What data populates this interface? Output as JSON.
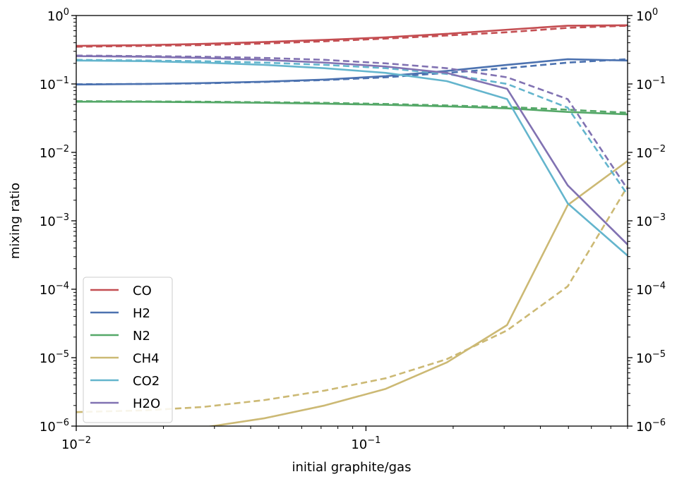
{
  "chart_data": {
    "type": "line",
    "xlabel": "initial graphite/gas",
    "ylabel": "mixing ratio",
    "xscale": "log",
    "yscale": "log",
    "xlim": [
      0.01,
      0.8
    ],
    "ylim": [
      1e-06,
      1
    ],
    "x_ticks": [
      {
        "value": 0.01,
        "base": "10",
        "exp": "−2"
      },
      {
        "value": 0.1,
        "base": "10",
        "exp": "−1"
      }
    ],
    "y_ticks": [
      {
        "value": 1e-06,
        "base": "10",
        "exp": "−6"
      },
      {
        "value": 1e-05,
        "base": "10",
        "exp": "−5"
      },
      {
        "value": 0.0001,
        "base": "10",
        "exp": "−4"
      },
      {
        "value": 0.001,
        "base": "10",
        "exp": "−3"
      },
      {
        "value": 0.01,
        "base": "10",
        "exp": "−2"
      },
      {
        "value": 0.1,
        "base": "10",
        "exp": "−1"
      },
      {
        "value": 1,
        "base": "10",
        "exp": "0"
      }
    ],
    "mirror_right_axis": true,
    "legend_position": "lower-left",
    "x": [
      0.01,
      0.0173,
      0.0273,
      0.0446,
      0.072,
      0.117,
      0.19,
      0.307,
      0.497,
      0.8
    ],
    "series": [
      {
        "name": "CO",
        "color": "#c44e52",
        "solid": [
          0.36,
          0.37,
          0.385,
          0.41,
          0.44,
          0.48,
          0.54,
          0.62,
          0.71,
          0.72
        ],
        "dashed": [
          0.35,
          0.36,
          0.37,
          0.39,
          0.42,
          0.46,
          0.51,
          0.57,
          0.66,
          0.71
        ]
      },
      {
        "name": "H2",
        "color": "#4c72b0",
        "solid": [
          0.098,
          0.1,
          0.103,
          0.108,
          0.116,
          0.13,
          0.155,
          0.19,
          0.23,
          0.22
        ],
        "dashed": [
          0.099,
          0.1,
          0.102,
          0.107,
          0.114,
          0.125,
          0.145,
          0.17,
          0.205,
          0.23
        ]
      },
      {
        "name": "N2",
        "color": "#55a868",
        "solid": [
          0.055,
          0.0548,
          0.054,
          0.053,
          0.0515,
          0.0495,
          0.047,
          0.044,
          0.039,
          0.036
        ],
        "dashed": [
          0.056,
          0.0555,
          0.055,
          0.054,
          0.053,
          0.051,
          0.0485,
          0.046,
          0.042,
          0.038
        ]
      },
      {
        "name": "CH4",
        "color": "#ccb974",
        "solid": [
          5e-07,
          7e-07,
          9.5e-07,
          1.3e-06,
          2e-06,
          3.5e-06,
          8.5e-06,
          3e-05,
          0.0017,
          0.0075
        ],
        "dashed": [
          1.6e-06,
          1.7e-06,
          1.9e-06,
          2.4e-06,
          3.3e-06,
          5e-06,
          9.5e-06,
          2.5e-05,
          0.00011,
          0.0032
        ]
      },
      {
        "name": "CO2",
        "color": "#64b5cd",
        "solid": [
          0.22,
          0.215,
          0.205,
          0.19,
          0.17,
          0.145,
          0.11,
          0.06,
          0.0018,
          0.00031
        ],
        "dashed": [
          0.225,
          0.22,
          0.215,
          0.205,
          0.19,
          0.17,
          0.14,
          0.1,
          0.045,
          0.0024
        ]
      },
      {
        "name": "H2O",
        "color": "#8172b2",
        "solid": [
          0.255,
          0.25,
          0.24,
          0.225,
          0.205,
          0.18,
          0.145,
          0.085,
          0.0033,
          0.00045
        ],
        "dashed": [
          0.26,
          0.255,
          0.25,
          0.24,
          0.225,
          0.2,
          0.17,
          0.125,
          0.06,
          0.0029
        ]
      }
    ]
  }
}
